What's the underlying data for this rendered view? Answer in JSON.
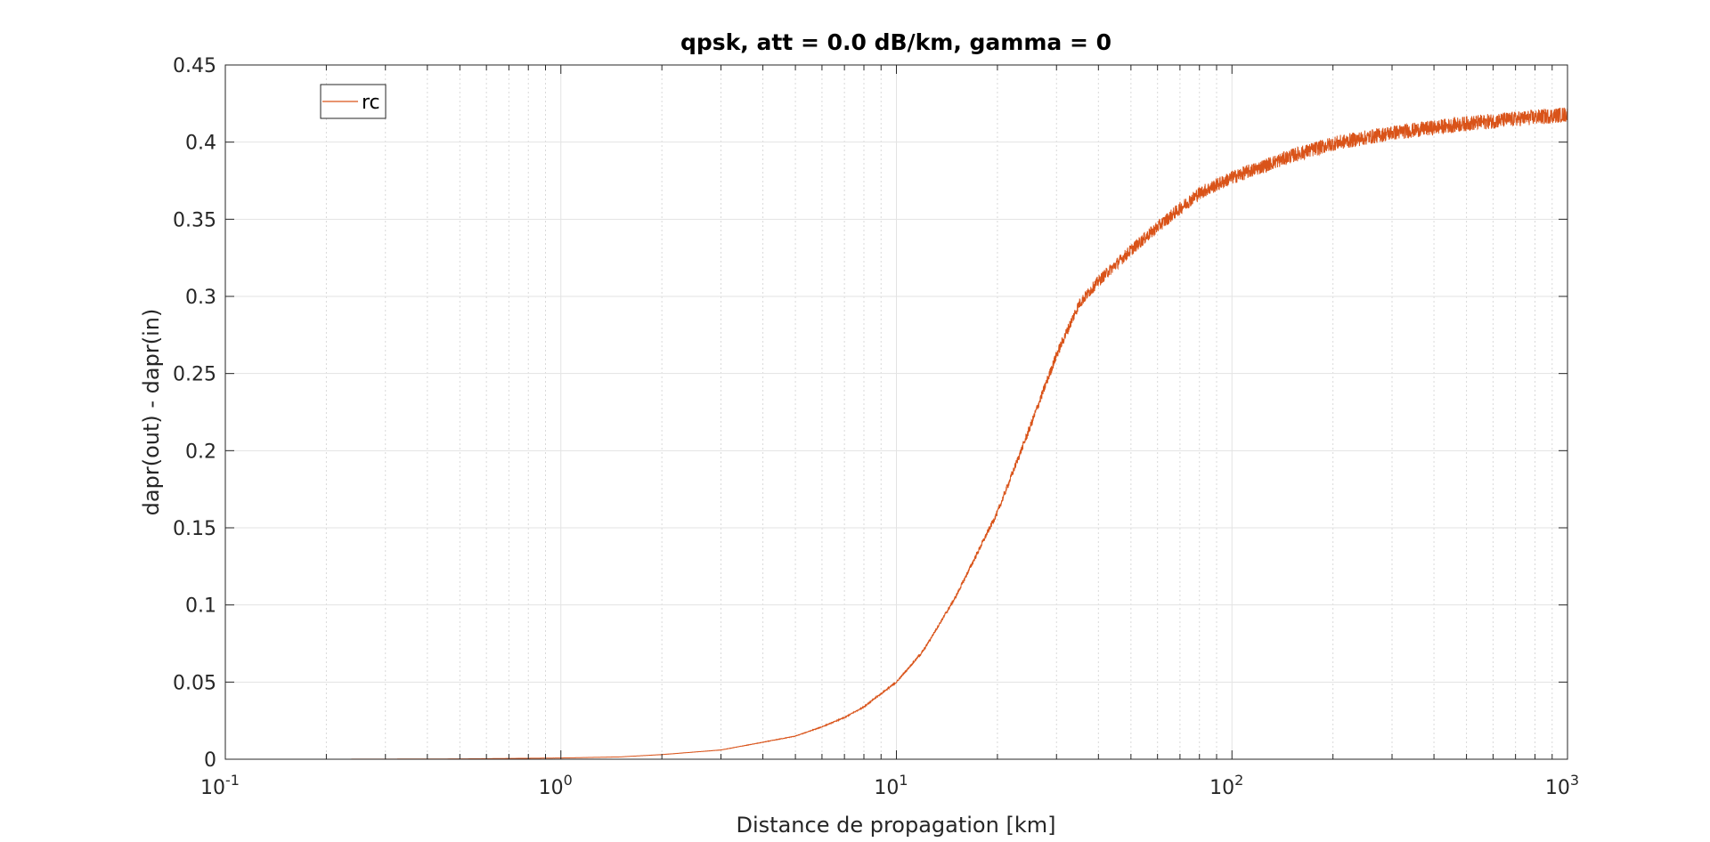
{
  "chart_data": {
    "type": "line",
    "title": "qpsk, att = 0.0 dB/km, gamma = 0",
    "xlabel": "Distance de propagation [km]",
    "ylabel": "dapr(out) - dapr(in)",
    "xscale": "log",
    "xlim": [
      0.1,
      1000
    ],
    "ylim": [
      0,
      0.45
    ],
    "grid": true,
    "minor_grid_x": true,
    "legend_placement": "top-left",
    "x_ticks": [
      {
        "value": 0.1,
        "base": "10",
        "exp": "-1"
      },
      {
        "value": 1,
        "base": "10",
        "exp": "0"
      },
      {
        "value": 10,
        "base": "10",
        "exp": "1"
      },
      {
        "value": 100,
        "base": "10",
        "exp": "2"
      },
      {
        "value": 1000,
        "base": "10",
        "exp": "3"
      }
    ],
    "y_ticks": [
      {
        "value": 0,
        "label": "0"
      },
      {
        "value": 0.05,
        "label": "0.05"
      },
      {
        "value": 0.1,
        "label": "0.1"
      },
      {
        "value": 0.15,
        "label": "0.15"
      },
      {
        "value": 0.2,
        "label": "0.2"
      },
      {
        "value": 0.25,
        "label": "0.25"
      },
      {
        "value": 0.3,
        "label": "0.3"
      },
      {
        "value": 0.35,
        "label": "0.35"
      },
      {
        "value": 0.4,
        "label": "0.4"
      },
      {
        "value": 0.45,
        "label": "0.45"
      }
    ],
    "series": [
      {
        "name": "rc",
        "color": "#d95319",
        "x": [
          0.1,
          0.2,
          0.5,
          1,
          1.5,
          2,
          3,
          4,
          5,
          6,
          7,
          8,
          10,
          12,
          15,
          20,
          25,
          30,
          35,
          40,
          50,
          60,
          70,
          80,
          100,
          150,
          200,
          300,
          500,
          700,
          1000
        ],
        "y": [
          0.0,
          0.0,
          0.0002,
          0.0008,
          0.0015,
          0.003,
          0.006,
          0.011,
          0.015,
          0.021,
          0.027,
          0.034,
          0.05,
          0.07,
          0.105,
          0.16,
          0.215,
          0.262,
          0.295,
          0.31,
          0.33,
          0.345,
          0.357,
          0.367,
          0.377,
          0.391,
          0.399,
          0.406,
          0.412,
          0.415,
          0.418
        ]
      }
    ]
  }
}
